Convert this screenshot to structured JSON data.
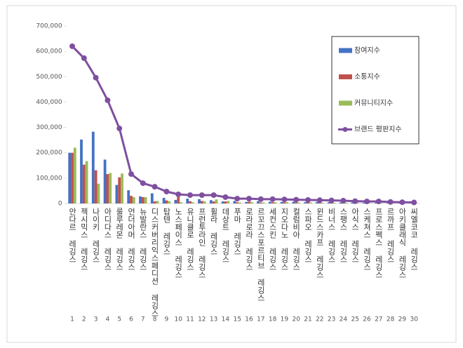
{
  "chart_data": {
    "type": "bar-line",
    "categories": [
      "안다르 레깅스",
      "젝시믹스 레깅스",
      "나이키 레깅스",
      "아디다스 레깅스",
      "룰루레몬 레깅스",
      "언더아머 레깅스",
      "뉴발란스 레깅스",
      "디스커버리익스페디션 레깅스",
      "탑텐 레깅스",
      "노스페이스 레깅스",
      "유니클로 레깅스",
      "프런투라인 레깅스",
      "휠라 레깅스",
      "데상트 레깅스",
      "푸마 레깅스",
      "로라로라 레깅스",
      "르꼬끄스포르티브 레깅스",
      "세컨스킨 레깅스",
      "지오다노 레깅스",
      "컬럼비아 레깅스",
      "스파오 레깅스",
      "윈드스카프 레깅스",
      "비너스 레깅스",
      "스팽스 레깅스",
      "아식스 레깅스",
      "스케쳐스 레깅스",
      "프로스펙스 레깅스",
      "르까프 레깅스",
      "아키클래식 레깅스",
      "씨엘코코 레깅스"
    ],
    "ranks": [
      1,
      2,
      3,
      4,
      5,
      6,
      7,
      8,
      9,
      10,
      11,
      12,
      13,
      14,
      15,
      16,
      17,
      18,
      19,
      20,
      21,
      22,
      23,
      24,
      25,
      26,
      27,
      28,
      29,
      30
    ],
    "series": [
      {
        "name": "참여지수",
        "kind": "bar",
        "color": "#4472c4",
        "values": [
          200000,
          252000,
          283000,
          173000,
          73000,
          52000,
          28000,
          40000,
          22000,
          14000,
          19000,
          17000,
          13000,
          8000,
          10000,
          6000,
          9000,
          7000,
          6000,
          7000,
          5000,
          6000,
          5000,
          4000,
          4000,
          3000,
          3000,
          2000,
          2000,
          2000
        ]
      },
      {
        "name": "소통지수",
        "kind": "bar",
        "color": "#c0504d",
        "values": [
          200000,
          153000,
          131000,
          116000,
          103000,
          30000,
          25000,
          8000,
          12000,
          25000,
          9000,
          10000,
          8000,
          8000,
          5000,
          7000,
          4000,
          5000,
          5000,
          4000,
          5000,
          4000,
          4000,
          4000,
          3000,
          3000,
          3000,
          2000,
          2000,
          1000
        ]
      },
      {
        "name": "커뮤니티지수",
        "kind": "bar",
        "color": "#9bbb59",
        "values": [
          220000,
          167000,
          78000,
          120000,
          118000,
          25000,
          25000,
          10000,
          9000,
          5000,
          5000,
          8000,
          16000,
          10000,
          4000,
          6000,
          4000,
          5000,
          5000,
          4000,
          4000,
          3000,
          3000,
          3000,
          2000,
          2000,
          2000,
          2000,
          1000,
          1000
        ]
      },
      {
        "name": "브랜드 평판지수",
        "kind": "line",
        "color": "#7f4fa0",
        "values": [
          620000,
          573000,
          496000,
          407000,
          296000,
          116000,
          80000,
          66000,
          47000,
          36000,
          33000,
          33000,
          33000,
          25000,
          19000,
          19000,
          17000,
          17000,
          16000,
          15000,
          14000,
          13000,
          12000,
          11000,
          9000,
          8000,
          8000,
          6000,
          5000,
          4000
        ]
      }
    ],
    "ylim": [
      0,
      700000
    ],
    "yticks": [
      0,
      {
        "value": 100000,
        "label": "100,000"
      },
      {
        "value": 200000,
        "label": "200,000"
      },
      {
        "value": 300000,
        "label": "300,000"
      },
      {
        "value": 400000,
        "label": "400,000"
      },
      {
        "value": 500000,
        "label": "500,000"
      },
      {
        "value": 600000,
        "label": "600,000"
      },
      {
        "value": 700000,
        "label": "700,000"
      }
    ],
    "grid": false,
    "legend": "right"
  }
}
